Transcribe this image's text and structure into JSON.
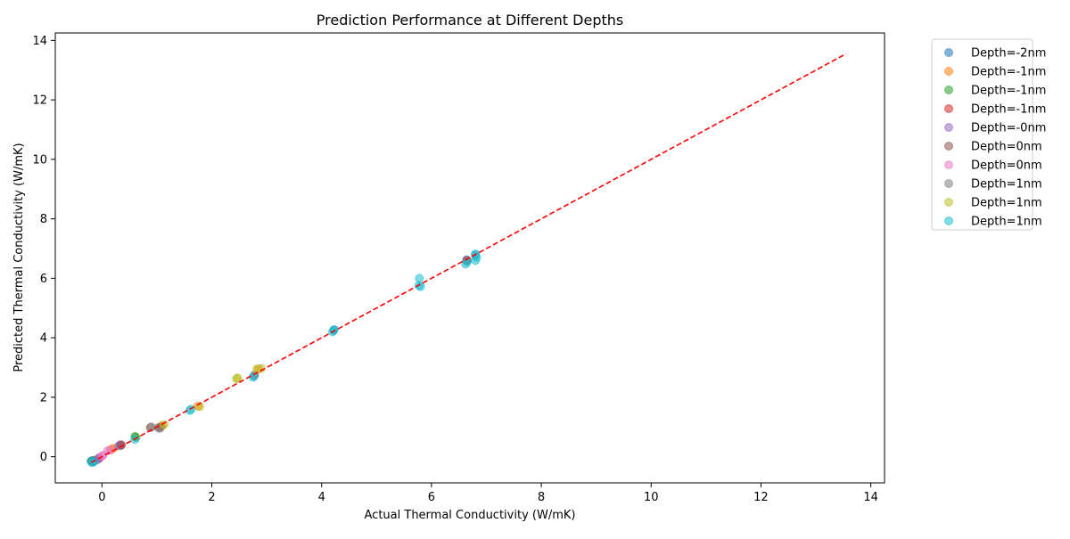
{
  "chart_data": {
    "type": "scatter",
    "title": "Prediction Performance at Different Depths",
    "xlabel": "Actual Thermal Conductivity (W/mK)",
    "ylabel": "Predicted Thermal Conductivity (W/mK)",
    "xlim": [
      -0.85,
      14.25
    ],
    "ylim": [
      -0.88,
      14.25
    ],
    "xticks": [
      0,
      2,
      4,
      6,
      8,
      10,
      12,
      14
    ],
    "yticks": [
      0,
      2,
      4,
      6,
      8,
      10,
      12,
      14
    ],
    "reference_line": {
      "x": [
        -0.2,
        13.55
      ],
      "y": [
        -0.2,
        13.55
      ],
      "color": "#ff0000",
      "style": "dashed"
    },
    "legend_position": "outside-right",
    "series": [
      {
        "name": "Depth=-2nm",
        "color": "#1f77b4",
        "points": [
          [
            -0.19,
            -0.15
          ],
          [
            -0.18,
            -0.13
          ],
          [
            -0.16,
            -0.16
          ],
          [
            2.77,
            2.72
          ],
          [
            6.64,
            6.62
          ],
          [
            6.8,
            6.78
          ],
          [
            4.22,
            4.25
          ]
        ]
      },
      {
        "name": "Depth=-1nm",
        "color": "#ff7f0e",
        "points": [
          [
            -0.17,
            -0.14
          ],
          [
            0.17,
            0.25
          ],
          [
            0.21,
            0.28
          ],
          [
            1.1,
            1.05
          ],
          [
            1.75,
            1.7
          ],
          [
            2.85,
            2.95
          ]
        ]
      },
      {
        "name": "Depth=-1nm",
        "color": "#2ca02c",
        "points": [
          [
            -0.18,
            -0.15
          ],
          [
            0.6,
            0.68
          ],
          [
            0.62,
            0.65
          ],
          [
            -0.15,
            -0.12
          ]
        ]
      },
      {
        "name": "Depth=-1nm",
        "color": "#d62728",
        "points": [
          [
            -0.19,
            -0.16
          ],
          [
            0.35,
            0.4
          ],
          [
            -0.05,
            -0.06
          ],
          [
            6.65,
            6.6
          ]
        ]
      },
      {
        "name": "Depth=-0nm",
        "color": "#9467bd",
        "points": [
          [
            -0.12,
            -0.12
          ],
          [
            -0.08,
            -0.1
          ],
          [
            -0.05,
            -0.03
          ],
          [
            0.3,
            0.36
          ],
          [
            0.33,
            0.4
          ]
        ]
      },
      {
        "name": "Depth=0nm",
        "color": "#8c564b",
        "points": [
          [
            0.88,
            0.98
          ],
          [
            1.03,
            0.98
          ],
          [
            1.07,
            1.0
          ],
          [
            0.35,
            0.38
          ]
        ]
      },
      {
        "name": "Depth=0nm",
        "color": "#e377c2",
        "points": [
          [
            0.02,
            0.05
          ],
          [
            0.1,
            0.2
          ],
          [
            0.15,
            0.22
          ],
          [
            0.0,
            0.02
          ]
        ]
      },
      {
        "name": "Depth=1nm",
        "color": "#7f7f7f",
        "points": [
          [
            1.05,
            0.95
          ],
          [
            2.78,
            2.75
          ],
          [
            0.9,
            1.0
          ]
        ]
      },
      {
        "name": "Depth=1nm",
        "color": "#bcbd22",
        "points": [
          [
            2.45,
            2.62
          ],
          [
            2.47,
            2.65
          ],
          [
            1.78,
            1.68
          ],
          [
            2.9,
            2.97
          ],
          [
            2.82,
            2.95
          ],
          [
            1.13,
            1.08
          ]
        ]
      },
      {
        "name": "Depth=1nm",
        "color": "#17becf",
        "points": [
          [
            -0.2,
            -0.15
          ],
          [
            -0.15,
            -0.18
          ],
          [
            -0.18,
            -0.2
          ],
          [
            0.6,
            0.58
          ],
          [
            1.6,
            1.55
          ],
          [
            1.62,
            1.6
          ],
          [
            2.75,
            2.67
          ],
          [
            4.2,
            4.2
          ],
          [
            4.23,
            4.28
          ],
          [
            5.78,
            6.0
          ],
          [
            5.8,
            5.72
          ],
          [
            5.77,
            5.76
          ],
          [
            6.62,
            6.48
          ],
          [
            6.65,
            6.55
          ],
          [
            6.8,
            6.6
          ],
          [
            6.82,
            6.7
          ],
          [
            6.8,
            6.82
          ]
        ]
      }
    ]
  }
}
